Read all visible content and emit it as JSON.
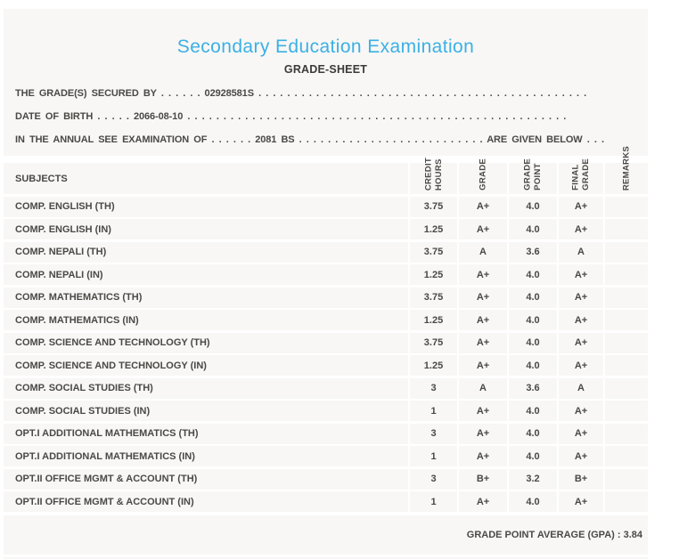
{
  "header": {
    "title": "Secondary Education Examination",
    "subtitle": "GRADE-SHEET"
  },
  "student_info": {
    "secured_by_line": "THE GRADE(S) SECURED BY . . . . . . 02928581S . . . . . . . . . . . . . . . . . . . . . . . . . . . . . . . . . . . . . . . . . . . . . .",
    "dob_line": "DATE OF BIRTH . . . . . 2066-08-10 . . . . . . . . . . . . . . . . . . . . . . . . . . . . . . . . . . . . . . . . . . . . . . . . . . . . .",
    "exam_line": "IN THE ANNUAL SEE EXAMINATION OF . . . . . . 2081 BS . . . . . . . . . . . . . . . . . . . . . . . . . . ARE GIVEN BELOW . . ."
  },
  "table": {
    "columns": [
      {
        "key": "subject",
        "label": "SUBJECTS"
      },
      {
        "key": "credit_hours",
        "label": "CREDIT\nHOURS"
      },
      {
        "key": "grade",
        "label": "GRADE"
      },
      {
        "key": "grade_point",
        "label": "GRADE\nPOINT"
      },
      {
        "key": "final_grade",
        "label": "FINAL\nGRADE"
      },
      {
        "key": "remarks",
        "label": "REMARKS"
      }
    ],
    "rows": [
      {
        "subject": "COMP. ENGLISH (TH)",
        "credit_hours": "3.75",
        "grade": "A+",
        "grade_point": "4.0",
        "final_grade": "A+",
        "remarks": ""
      },
      {
        "subject": "COMP. ENGLISH (IN)",
        "credit_hours": "1.25",
        "grade": "A+",
        "grade_point": "4.0",
        "final_grade": "A+",
        "remarks": ""
      },
      {
        "subject": "COMP. NEPALI (TH)",
        "credit_hours": "3.75",
        "grade": "A",
        "grade_point": "3.6",
        "final_grade": "A",
        "remarks": ""
      },
      {
        "subject": "COMP. NEPALI (IN)",
        "credit_hours": "1.25",
        "grade": "A+",
        "grade_point": "4.0",
        "final_grade": "A+",
        "remarks": ""
      },
      {
        "subject": "COMP. MATHEMATICS (TH)",
        "credit_hours": "3.75",
        "grade": "A+",
        "grade_point": "4.0",
        "final_grade": "A+",
        "remarks": ""
      },
      {
        "subject": "COMP. MATHEMATICS (IN)",
        "credit_hours": "1.25",
        "grade": "A+",
        "grade_point": "4.0",
        "final_grade": "A+",
        "remarks": ""
      },
      {
        "subject": "COMP. SCIENCE AND TECHNOLOGY (TH)",
        "credit_hours": "3.75",
        "grade": "A+",
        "grade_point": "4.0",
        "final_grade": "A+",
        "remarks": ""
      },
      {
        "subject": "COMP. SCIENCE AND TECHNOLOGY (IN)",
        "credit_hours": "1.25",
        "grade": "A+",
        "grade_point": "4.0",
        "final_grade": "A+",
        "remarks": ""
      },
      {
        "subject": "COMP. SOCIAL STUDIES (TH)",
        "credit_hours": "3",
        "grade": "A",
        "grade_point": "3.6",
        "final_grade": "A",
        "remarks": ""
      },
      {
        "subject": "COMP. SOCIAL STUDIES (IN)",
        "credit_hours": "1",
        "grade": "A+",
        "grade_point": "4.0",
        "final_grade": "A+",
        "remarks": ""
      },
      {
        "subject": "OPT.I ADDITIONAL MATHEMATICS (TH)",
        "credit_hours": "3",
        "grade": "A+",
        "grade_point": "4.0",
        "final_grade": "A+",
        "remarks": ""
      },
      {
        "subject": "OPT.I ADDITIONAL MATHEMATICS (IN)",
        "credit_hours": "1",
        "grade": "A+",
        "grade_point": "4.0",
        "final_grade": "A+",
        "remarks": ""
      },
      {
        "subject": "OPT.II OFFICE MGMT & ACCOUNT (TH)",
        "credit_hours": "3",
        "grade": "B+",
        "grade_point": "3.2",
        "final_grade": "B+",
        "remarks": ""
      },
      {
        "subject": "OPT.II OFFICE MGMT & ACCOUNT (IN)",
        "credit_hours": "1",
        "grade": "A+",
        "grade_point": "4.0",
        "final_grade": "A+",
        "remarks": ""
      }
    ]
  },
  "summary": {
    "gpa_text": "GRADE POINT AVERAGE (GPA) : 3.84"
  },
  "colors": {
    "title_blue": "#3bb0e5",
    "panel_bg": "#f8f7f5",
    "text": "#4b4845",
    "page_bg": "#ffffff"
  }
}
